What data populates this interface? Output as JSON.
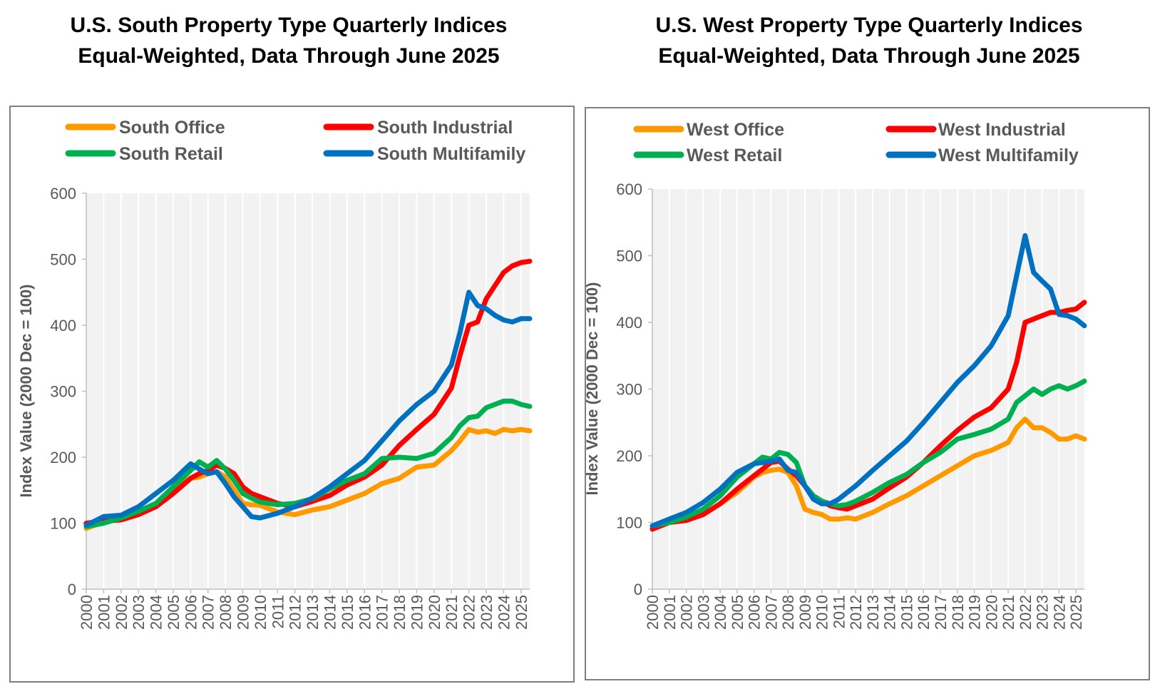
{
  "chart_data": [
    {
      "type": "line",
      "title": "U.S. South Property Type Quarterly Indices",
      "subtitle": "Equal-Weighted, Data Through June 2025",
      "ylabel": "Index Value (2000 Dec = 100)",
      "xlabel": "",
      "ylim": [
        0,
        600
      ],
      "xlim": [
        2000,
        2025.5
      ],
      "yticks": [
        "0",
        "100",
        "200",
        "300",
        "400",
        "500",
        "600"
      ],
      "xticks": [
        "2000",
        "2001",
        "2002",
        "2003",
        "2004",
        "2005",
        "2006",
        "2007",
        "2008",
        "2009",
        "2010",
        "2011",
        "2012",
        "2013",
        "2014",
        "2015",
        "2016",
        "2017",
        "2018",
        "2019",
        "2020",
        "2021",
        "2022",
        "2023",
        "2024",
        "2025"
      ],
      "grid": "vertical",
      "series": [
        {
          "name": "South Office",
          "color": "#FF9900",
          "x": [
            2000.0,
            2001.0,
            2002.0,
            2003.0,
            2004.0,
            2005.0,
            2006.0,
            2006.5,
            2007.0,
            2007.5,
            2008.0,
            2008.5,
            2009.0,
            2009.5,
            2010.0,
            2011.0,
            2012.0,
            2013.0,
            2014.0,
            2015.0,
            2016.0,
            2017.0,
            2018.0,
            2019.0,
            2020.0,
            2021.0,
            2021.5,
            2022.0,
            2022.5,
            2023.0,
            2023.5,
            2024.0,
            2024.5,
            2025.0,
            2025.5
          ],
          "values": [
            92,
            102,
            107,
            113,
            125,
            150,
            168,
            170,
            175,
            178,
            170,
            150,
            130,
            128,
            127,
            117,
            113,
            120,
            125,
            135,
            145,
            160,
            168,
            185,
            188,
            210,
            225,
            242,
            238,
            240,
            236,
            242,
            240,
            242,
            240
          ]
        },
        {
          "name": "South Industrial",
          "color": "#FF0000",
          "x": [
            2000.0,
            2001.0,
            2002.0,
            2003.0,
            2004.0,
            2005.0,
            2006.0,
            2006.5,
            2007.0,
            2007.5,
            2008.0,
            2008.5,
            2009.0,
            2009.5,
            2010.0,
            2011.0,
            2012.0,
            2013.0,
            2014.0,
            2015.0,
            2016.0,
            2017.0,
            2018.0,
            2019.0,
            2020.0,
            2021.0,
            2021.5,
            2022.0,
            2022.5,
            2023.0,
            2023.5,
            2024.0,
            2024.5,
            2025.0,
            2025.5
          ],
          "values": [
            100,
            103,
            105,
            113,
            125,
            145,
            168,
            175,
            180,
            188,
            183,
            175,
            155,
            145,
            140,
            130,
            125,
            133,
            142,
            158,
            170,
            188,
            218,
            242,
            265,
            305,
            355,
            400,
            405,
            440,
            460,
            480,
            490,
            495,
            497
          ]
        },
        {
          "name": "South Retail",
          "color": "#00B050",
          "x": [
            2000.0,
            2001.0,
            2002.0,
            2003.0,
            2004.0,
            2005.0,
            2006.0,
            2006.5,
            2007.0,
            2007.5,
            2008.0,
            2008.5,
            2009.0,
            2009.5,
            2010.0,
            2011.0,
            2012.0,
            2013.0,
            2014.0,
            2015.0,
            2016.0,
            2017.0,
            2018.0,
            2019.0,
            2020.0,
            2021.0,
            2021.5,
            2022.0,
            2022.5,
            2023.0,
            2023.5,
            2024.0,
            2024.5,
            2025.0,
            2025.5
          ],
          "values": [
            95,
            100,
            108,
            118,
            130,
            155,
            180,
            193,
            185,
            195,
            182,
            165,
            145,
            138,
            132,
            128,
            130,
            137,
            152,
            165,
            175,
            198,
            200,
            198,
            206,
            230,
            248,
            260,
            262,
            275,
            280,
            285,
            285,
            280,
            277
          ]
        },
        {
          "name": "South Multifamily",
          "color": "#0070C0",
          "x": [
            2000.0,
            2001.0,
            2002.0,
            2003.0,
            2004.0,
            2005.0,
            2006.0,
            2006.5,
            2007.0,
            2007.5,
            2008.0,
            2008.5,
            2009.0,
            2009.5,
            2010.0,
            2011.0,
            2012.0,
            2013.0,
            2014.0,
            2015.0,
            2016.0,
            2017.0,
            2018.0,
            2019.0,
            2020.0,
            2021.0,
            2021.5,
            2022.0,
            2022.5,
            2023.0,
            2023.5,
            2024.0,
            2024.5,
            2025.0,
            2025.5
          ],
          "values": [
            97,
            110,
            112,
            125,
            145,
            165,
            190,
            182,
            175,
            178,
            160,
            140,
            125,
            110,
            108,
            115,
            125,
            138,
            155,
            175,
            195,
            225,
            255,
            280,
            300,
            340,
            390,
            450,
            430,
            425,
            415,
            408,
            405,
            410,
            410
          ]
        }
      ]
    },
    {
      "type": "line",
      "title": "U.S. West Property Type Quarterly Indices",
      "subtitle": "Equal-Weighted, Data Through June 2025",
      "ylabel": "Index Value (2000 Dec = 100)",
      "xlabel": "",
      "ylim": [
        0,
        600
      ],
      "xlim": [
        2000,
        2025.5
      ],
      "yticks": [
        "0",
        "100",
        "200",
        "300",
        "400",
        "500",
        "600"
      ],
      "xticks": [
        "2000",
        "2001",
        "2002",
        "2003",
        "2004",
        "2005",
        "2006",
        "2007",
        "2008",
        "2009",
        "2010",
        "2011",
        "2012",
        "2013",
        "2014",
        "2015",
        "2016",
        "2017",
        "2018",
        "2019",
        "2020",
        "2021",
        "2022",
        "2023",
        "2024",
        "2025"
      ],
      "grid": "vertical",
      "series": [
        {
          "name": "West Office",
          "color": "#FF9900",
          "x": [
            2000.0,
            2001.0,
            2002.0,
            2003.0,
            2004.0,
            2005.0,
            2006.0,
            2006.5,
            2007.0,
            2007.5,
            2008.0,
            2008.5,
            2009.0,
            2009.5,
            2010.0,
            2010.5,
            2011.0,
            2011.5,
            2012.0,
            2013.0,
            2014.0,
            2015.0,
            2016.0,
            2017.0,
            2018.0,
            2019.0,
            2020.0,
            2021.0,
            2021.5,
            2022.0,
            2022.5,
            2023.0,
            2023.5,
            2024.0,
            2024.5,
            2025.0,
            2025.5
          ],
          "values": [
            92,
            100,
            105,
            112,
            128,
            145,
            168,
            175,
            178,
            180,
            175,
            155,
            120,
            115,
            112,
            105,
            105,
            107,
            105,
            115,
            128,
            140,
            155,
            170,
            185,
            200,
            208,
            220,
            242,
            255,
            242,
            242,
            235,
            225,
            225,
            230,
            225
          ]
        },
        {
          "name": "West Industrial",
          "color": "#FF0000",
          "x": [
            2000.0,
            2001.0,
            2002.0,
            2003.0,
            2004.0,
            2005.0,
            2006.0,
            2006.5,
            2007.0,
            2007.5,
            2008.0,
            2008.5,
            2009.0,
            2009.5,
            2010.0,
            2010.5,
            2011.0,
            2011.5,
            2012.0,
            2013.0,
            2014.0,
            2015.0,
            2016.0,
            2017.0,
            2018.0,
            2019.0,
            2020.0,
            2021.0,
            2021.5,
            2022.0,
            2022.5,
            2023.0,
            2023.5,
            2024.0,
            2024.5,
            2025.0,
            2025.5
          ],
          "values": [
            90,
            100,
            103,
            112,
            128,
            150,
            170,
            180,
            190,
            192,
            180,
            170,
            155,
            140,
            132,
            125,
            122,
            120,
            125,
            135,
            152,
            168,
            190,
            215,
            238,
            258,
            272,
            300,
            340,
            400,
            405,
            410,
            415,
            415,
            418,
            420,
            430
          ]
        },
        {
          "name": "West Retail",
          "color": "#00B050",
          "x": [
            2000.0,
            2001.0,
            2002.0,
            2003.0,
            2004.0,
            2005.0,
            2006.0,
            2006.5,
            2007.0,
            2007.5,
            2008.0,
            2008.5,
            2009.0,
            2009.5,
            2010.0,
            2010.5,
            2011.0,
            2011.5,
            2012.0,
            2013.0,
            2014.0,
            2015.0,
            2016.0,
            2017.0,
            2018.0,
            2019.0,
            2020.0,
            2021.0,
            2021.5,
            2022.0,
            2022.5,
            2023.0,
            2023.5,
            2024.0,
            2024.5,
            2025.0,
            2025.5
          ],
          "values": [
            95,
            100,
            108,
            120,
            140,
            168,
            188,
            198,
            195,
            205,
            202,
            190,
            155,
            140,
            132,
            128,
            125,
            127,
            132,
            145,
            160,
            172,
            190,
            205,
            225,
            232,
            240,
            255,
            280,
            290,
            300,
            292,
            300,
            305,
            300,
            305,
            312
          ]
        },
        {
          "name": "West Multifamily",
          "color": "#0070C0",
          "x": [
            2000.0,
            2001.0,
            2002.0,
            2003.0,
            2004.0,
            2005.0,
            2006.0,
            2006.5,
            2007.0,
            2007.5,
            2008.0,
            2008.5,
            2009.0,
            2009.5,
            2010.0,
            2010.5,
            2011.0,
            2011.5,
            2012.0,
            2013.0,
            2014.0,
            2015.0,
            2016.0,
            2017.0,
            2018.0,
            2019.0,
            2020.0,
            2021.0,
            2021.5,
            2022.0,
            2022.5,
            2023.0,
            2023.5,
            2024.0,
            2024.5,
            2025.0,
            2025.5
          ],
          "values": [
            95,
            105,
            115,
            130,
            150,
            175,
            188,
            190,
            192,
            195,
            178,
            175,
            155,
            135,
            128,
            128,
            135,
            145,
            155,
            178,
            200,
            222,
            250,
            280,
            310,
            335,
            365,
            410,
            470,
            530,
            475,
            462,
            450,
            412,
            410,
            405,
            395
          ]
        }
      ]
    }
  ]
}
